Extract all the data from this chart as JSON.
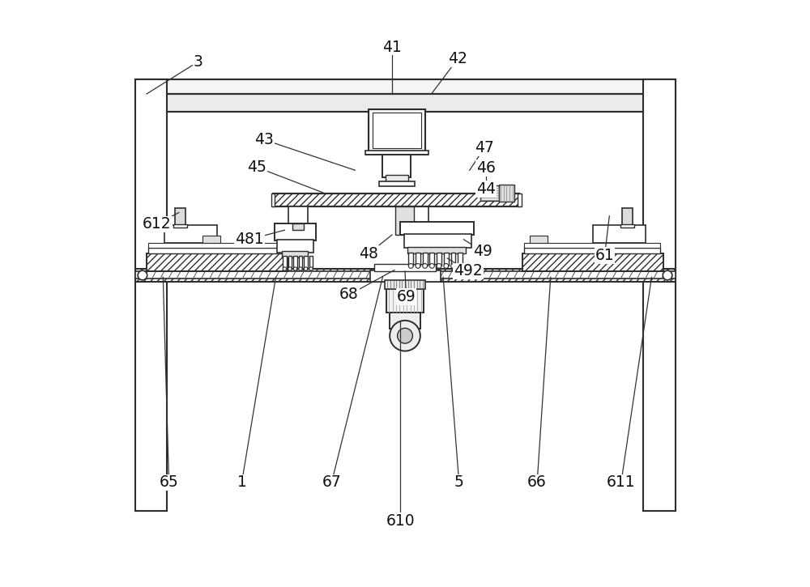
{
  "bg_color": "#ffffff",
  "line_color": "#2d2d2d",
  "fig_width": 10.0,
  "fig_height": 7.25,
  "labels_data": {
    "3": [
      0.148,
      0.895,
      0.06,
      0.84
    ],
    "41": [
      0.478,
      0.92,
      0.478,
      0.84
    ],
    "42": [
      0.59,
      0.9,
      0.545,
      0.84
    ],
    "43": [
      0.26,
      0.762,
      0.415,
      0.71
    ],
    "45": [
      0.248,
      0.715,
      0.36,
      0.672
    ],
    "47": [
      0.635,
      0.748,
      0.61,
      0.71
    ],
    "46": [
      0.638,
      0.714,
      0.638,
      0.69
    ],
    "44": [
      0.638,
      0.678,
      0.628,
      0.664
    ],
    "481": [
      0.235,
      0.592,
      0.295,
      0.608
    ],
    "48": [
      0.438,
      0.568,
      0.478,
      0.6
    ],
    "49": [
      0.632,
      0.572,
      0.6,
      0.592
    ],
    "492": [
      0.608,
      0.538,
      0.572,
      0.56
    ],
    "612": [
      0.078,
      0.618,
      0.115,
      0.638
    ],
    "61": [
      0.84,
      0.565,
      0.848,
      0.632
    ],
    "68": [
      0.405,
      0.498,
      0.482,
      0.54
    ],
    "69": [
      0.502,
      0.495,
      0.5,
      0.538
    ],
    "65": [
      0.098,
      0.178,
      0.088,
      0.528
    ],
    "1": [
      0.222,
      0.178,
      0.28,
      0.528
    ],
    "67": [
      0.375,
      0.178,
      0.462,
      0.528
    ],
    "610": [
      0.492,
      0.112,
      0.492,
      0.452
    ],
    "5": [
      0.592,
      0.178,
      0.565,
      0.528
    ],
    "66": [
      0.725,
      0.178,
      0.748,
      0.528
    ],
    "611": [
      0.868,
      0.178,
      0.92,
      0.528
    ]
  }
}
